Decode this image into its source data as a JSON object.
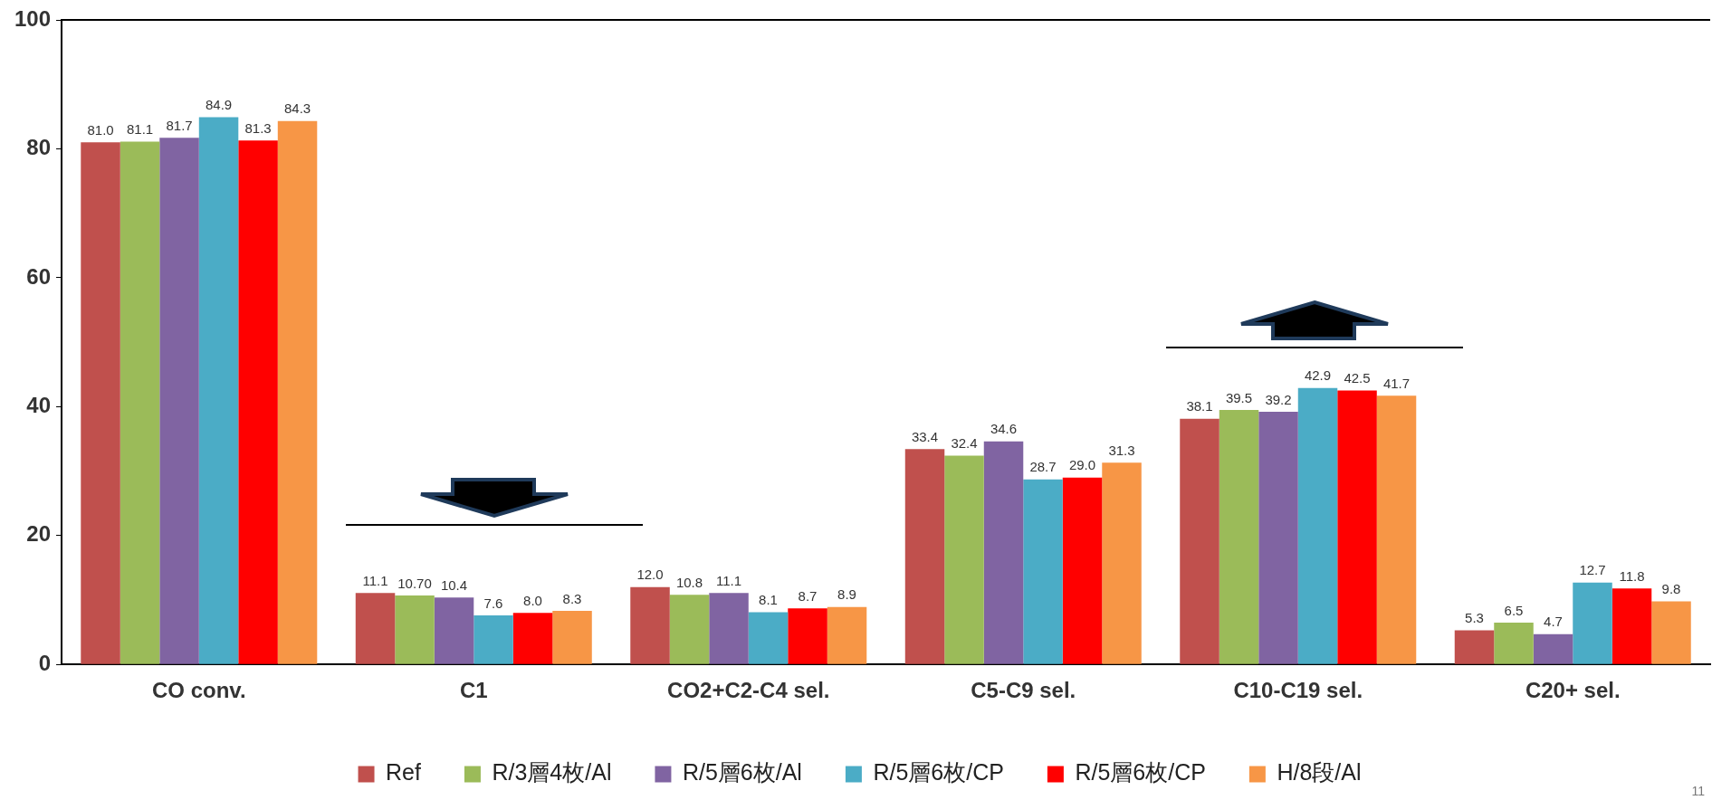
{
  "chart_data": {
    "type": "bar",
    "categories": [
      "CO conv.",
      "C1",
      "CO2+C2-C4 sel.",
      "C5-C9 sel.",
      "C10-C19 sel.",
      "C20+ sel."
    ],
    "series": [
      {
        "name": "Ref",
        "color": "#c0504d",
        "values": [
          81.0,
          11.1,
          12.0,
          33.4,
          38.1,
          5.3
        ],
        "value_labels": [
          "81.0",
          "11.1",
          "12.0",
          "33.4",
          "38.1",
          "5.3"
        ]
      },
      {
        "name": "R/3層4枚/Al",
        "color": "#9bbb59",
        "values": [
          81.1,
          10.7,
          10.8,
          32.4,
          39.5,
          6.5
        ],
        "value_labels": [
          "81.1",
          "10.70",
          "10.8",
          "32.4",
          "39.5",
          "6.5"
        ]
      },
      {
        "name": "R/5層6枚/Al",
        "color": "#8064a2",
        "values": [
          81.7,
          10.4,
          11.1,
          34.6,
          39.2,
          4.7
        ],
        "value_labels": [
          "81.7",
          "10.4",
          "11.1",
          "34.6",
          "39.2",
          "4.7"
        ]
      },
      {
        "name": "R/5層6枚/CP",
        "color": "#4bacc6",
        "values": [
          84.9,
          7.6,
          8.1,
          28.7,
          42.9,
          12.7
        ],
        "value_labels": [
          "84.9",
          "7.6",
          "8.1",
          "28.7",
          "42.9",
          "12.7"
        ]
      },
      {
        "name": "R/5層6枚/CP",
        "color": "#ff0000",
        "values": [
          81.3,
          8.0,
          8.7,
          29.0,
          42.5,
          11.8
        ],
        "value_labels": [
          "81.3",
          "8.0",
          "8.7",
          "29.0",
          "42.5",
          "11.8"
        ]
      },
      {
        "name": "H/8段/Al",
        "color": "#f79646",
        "values": [
          84.3,
          8.3,
          8.9,
          31.3,
          41.7,
          9.8
        ],
        "value_labels": [
          "84.3",
          "8.3",
          "8.9",
          "31.3",
          "41.7",
          "9.8"
        ]
      }
    ],
    "ylim": [
      0,
      100
    ],
    "yticks": [
      0,
      20,
      40,
      60,
      80,
      100
    ],
    "grid": false,
    "legend": "bottom",
    "annotations": [
      "11"
    ]
  }
}
